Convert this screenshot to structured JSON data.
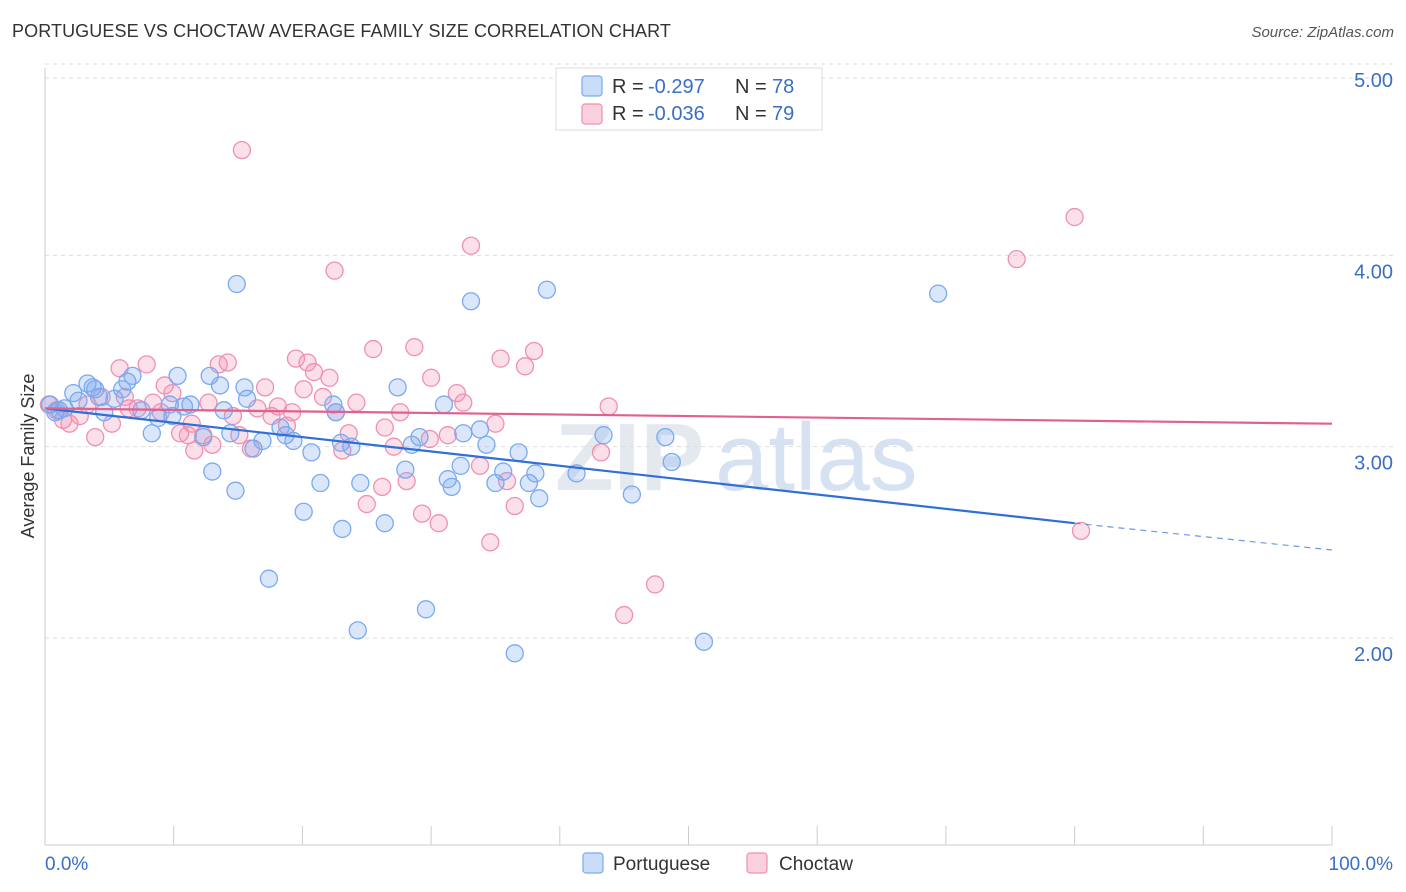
{
  "title": "PORTUGUESE VS CHOCTAW AVERAGE FAMILY SIZE CORRELATION CHART",
  "source": "Source: ZipAtlas.com",
  "watermark": {
    "zip": "ZIP",
    "atlas": "atlas"
  },
  "legend": {
    "r_label": "R =",
    "n_label": "N =",
    "rows": [
      {
        "name": "Portuguese",
        "r": "-0.297",
        "n": "78",
        "color": "#7aaaf0"
      },
      {
        "name": "Choctaw",
        "r": "-0.036",
        "n": "79",
        "color": "#f090b0"
      }
    ]
  },
  "chart_data": {
    "type": "scatter",
    "title": "PORTUGUESE VS CHOCTAW AVERAGE FAMILY SIZE CORRELATION CHART",
    "xlabel": "",
    "ylabel": "Average Family Size",
    "xlim": [
      0,
      100
    ],
    "ylim": [
      1.0,
      5.2
    ],
    "x_tick_labels": [
      "0.0%",
      "100.0%"
    ],
    "y_ticks": [
      2.0,
      3.0,
      4.0,
      5.0
    ],
    "y_tick_labels": [
      "2.00",
      "3.00",
      "4.00",
      "5.00"
    ],
    "series": [
      {
        "name": "Portuguese",
        "color": "#7aaaf0",
        "line_color": "#2f6fd6",
        "trend": {
          "x0": 0,
          "y0": 3.2,
          "x1": 80,
          "y1": 2.6,
          "dash_to_x": 100,
          "dash_to_y": 2.46
        },
        "points": [
          [
            0.4,
            3.22
          ],
          [
            0.8,
            3.18
          ],
          [
            1.5,
            3.2
          ],
          [
            2.2,
            3.28
          ],
          [
            2.6,
            3.24
          ],
          [
            3.3,
            3.33
          ],
          [
            3.7,
            3.31
          ],
          [
            4.2,
            3.26
          ],
          [
            4.6,
            3.18
          ],
          [
            5.4,
            3.25
          ],
          [
            6.0,
            3.3
          ],
          [
            6.4,
            3.34
          ],
          [
            6.8,
            3.37
          ],
          [
            7.5,
            3.19
          ],
          [
            8.3,
            3.07
          ],
          [
            8.8,
            3.15
          ],
          [
            9.7,
            3.22
          ],
          [
            10.3,
            3.37
          ],
          [
            10.8,
            3.21
          ],
          [
            11.3,
            3.22
          ],
          [
            12.3,
            3.05
          ],
          [
            12.8,
            3.37
          ],
          [
            13.0,
            2.87
          ],
          [
            13.6,
            3.32
          ],
          [
            13.9,
            3.19
          ],
          [
            14.4,
            3.07
          ],
          [
            14.8,
            2.77
          ],
          [
            14.9,
            3.85
          ],
          [
            15.5,
            3.31
          ],
          [
            15.7,
            3.25
          ],
          [
            16.2,
            2.99
          ],
          [
            16.9,
            3.03
          ],
          [
            17.4,
            2.31
          ],
          [
            18.3,
            3.1
          ],
          [
            18.7,
            3.06
          ],
          [
            19.3,
            3.03
          ],
          [
            20.1,
            2.66
          ],
          [
            20.7,
            2.97
          ],
          [
            21.4,
            2.81
          ],
          [
            22.4,
            3.22
          ],
          [
            22.6,
            3.18
          ],
          [
            23.0,
            3.02
          ],
          [
            23.1,
            2.57
          ],
          [
            23.8,
            3.0
          ],
          [
            24.5,
            2.81
          ],
          [
            26.4,
            2.6
          ],
          [
            27.4,
            3.31
          ],
          [
            28.0,
            2.88
          ],
          [
            28.5,
            3.01
          ],
          [
            29.1,
            3.05
          ],
          [
            29.6,
            2.15
          ],
          [
            31.0,
            3.22
          ],
          [
            31.3,
            2.83
          ],
          [
            31.6,
            2.79
          ],
          [
            32.3,
            2.9
          ],
          [
            32.5,
            3.07
          ],
          [
            33.1,
            3.76
          ],
          [
            33.8,
            3.09
          ],
          [
            34.3,
            3.01
          ],
          [
            35.0,
            2.81
          ],
          [
            35.6,
            2.87
          ],
          [
            36.8,
            2.97
          ],
          [
            37.6,
            2.81
          ],
          [
            38.1,
            2.86
          ],
          [
            38.4,
            2.73
          ],
          [
            39.0,
            3.82
          ],
          [
            41.3,
            2.86
          ],
          [
            43.4,
            3.06
          ],
          [
            45.6,
            2.75
          ],
          [
            48.2,
            3.05
          ],
          [
            48.7,
            2.92
          ],
          [
            51.2,
            1.98
          ],
          [
            69.4,
            3.8
          ],
          [
            36.5,
            1.92
          ],
          [
            24.3,
            2.04
          ],
          [
            9.9,
            3.16
          ],
          [
            3.9,
            3.3
          ],
          [
            1.1,
            3.19
          ]
        ]
      },
      {
        "name": "Choctaw",
        "color": "#f090b0",
        "line_color": "#e06090",
        "trend": {
          "x0": 0,
          "y0": 3.2,
          "x1": 100,
          "y1": 3.12
        },
        "points": [
          [
            0.3,
            3.22
          ],
          [
            0.9,
            3.19
          ],
          [
            1.4,
            3.14
          ],
          [
            1.9,
            3.12
          ],
          [
            2.7,
            3.16
          ],
          [
            3.3,
            3.22
          ],
          [
            3.9,
            3.05
          ],
          [
            4.4,
            3.26
          ],
          [
            5.2,
            3.12
          ],
          [
            5.8,
            3.41
          ],
          [
            6.2,
            3.26
          ],
          [
            7.2,
            3.2
          ],
          [
            7.9,
            3.43
          ],
          [
            8.4,
            3.23
          ],
          [
            9.0,
            3.18
          ],
          [
            9.3,
            3.32
          ],
          [
            9.9,
            3.28
          ],
          [
            10.5,
            3.07
          ],
          [
            11.1,
            3.06
          ],
          [
            11.6,
            2.98
          ],
          [
            12.3,
            3.06
          ],
          [
            12.7,
            3.23
          ],
          [
            13.0,
            3.01
          ],
          [
            13.5,
            3.43
          ],
          [
            14.2,
            3.44
          ],
          [
            14.6,
            3.16
          ],
          [
            15.1,
            3.06
          ],
          [
            15.3,
            4.55
          ],
          [
            16.0,
            2.99
          ],
          [
            16.5,
            3.2
          ],
          [
            17.1,
            3.31
          ],
          [
            17.6,
            3.16
          ],
          [
            18.1,
            3.21
          ],
          [
            18.8,
            3.11
          ],
          [
            19.2,
            3.18
          ],
          [
            19.5,
            3.46
          ],
          [
            20.1,
            3.3
          ],
          [
            20.4,
            3.44
          ],
          [
            20.9,
            3.39
          ],
          [
            21.6,
            3.26
          ],
          [
            22.1,
            3.36
          ],
          [
            22.5,
            3.92
          ],
          [
            23.1,
            2.98
          ],
          [
            23.6,
            3.07
          ],
          [
            24.2,
            3.23
          ],
          [
            25.0,
            2.7
          ],
          [
            25.5,
            3.51
          ],
          [
            26.2,
            2.79
          ],
          [
            26.4,
            3.1
          ],
          [
            27.1,
            3.0
          ],
          [
            27.6,
            3.18
          ],
          [
            28.1,
            2.82
          ],
          [
            28.7,
            3.52
          ],
          [
            29.3,
            2.65
          ],
          [
            30.0,
            3.36
          ],
          [
            30.6,
            2.6
          ],
          [
            31.3,
            3.06
          ],
          [
            32.0,
            3.28
          ],
          [
            32.5,
            3.23
          ],
          [
            33.1,
            4.05
          ],
          [
            33.8,
            2.9
          ],
          [
            34.6,
            2.5
          ],
          [
            35.0,
            3.12
          ],
          [
            35.4,
            3.46
          ],
          [
            35.9,
            2.82
          ],
          [
            36.5,
            2.69
          ],
          [
            37.3,
            3.42
          ],
          [
            38.0,
            3.5
          ],
          [
            43.2,
            2.97
          ],
          [
            45.0,
            2.12
          ],
          [
            47.4,
            2.28
          ],
          [
            75.5,
            3.98
          ],
          [
            80.5,
            2.56
          ],
          [
            80.0,
            4.2
          ],
          [
            43.8,
            3.21
          ],
          [
            29.9,
            3.04
          ],
          [
            22.6,
            3.18
          ],
          [
            11.4,
            3.12
          ],
          [
            6.5,
            3.2
          ]
        ]
      }
    ],
    "bottom_legend": [
      "Portuguese",
      "Choctaw"
    ]
  }
}
